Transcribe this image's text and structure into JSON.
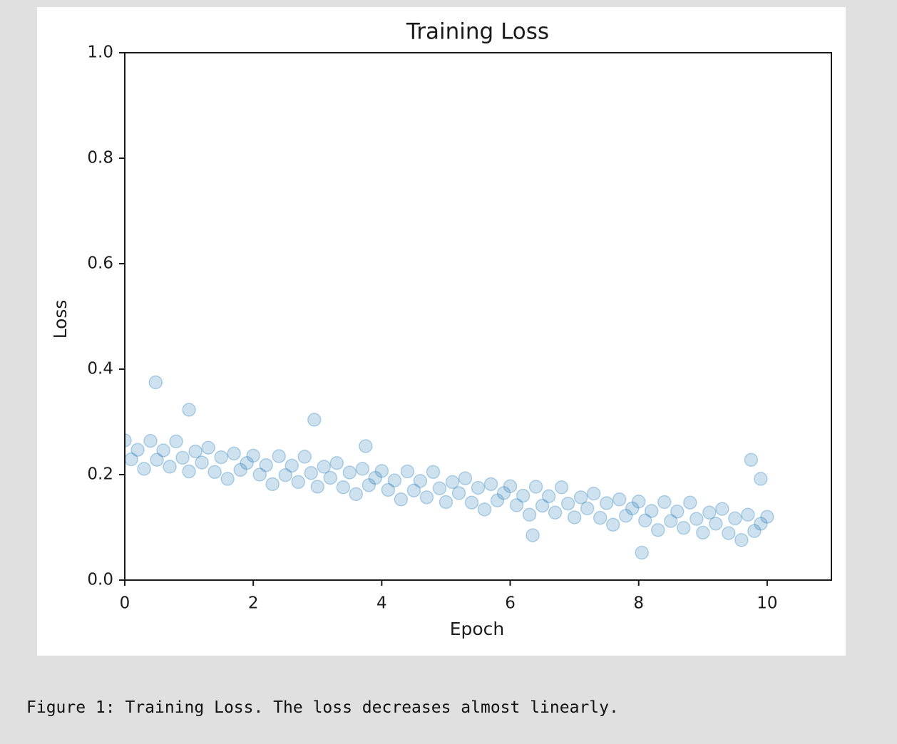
{
  "chart_data": {
    "type": "scatter",
    "title": "Training Loss",
    "xlabel": "Epoch",
    "ylabel": "Loss",
    "color": "#1f77b4",
    "xlim": [
      0,
      11
    ],
    "ylim": [
      0,
      1
    ],
    "xticks": [
      0,
      2,
      4,
      6,
      8,
      10
    ],
    "yticks": [
      {
        "value": 0,
        "label": "0.0"
      },
      0.2,
      0.4,
      0.6,
      0.8,
      {
        "value": 1,
        "label": "1.0"
      }
    ],
    "x": [
      0,
      0.1,
      0.2,
      0.3,
      0.4,
      0.5,
      0.6,
      0.7,
      0.8,
      0.9,
      1,
      1.1,
      1.2,
      1.3,
      1.4,
      1.5,
      1.6,
      1.7,
      1.8,
      1.9,
      2,
      2.1,
      2.2,
      2.3,
      2.4,
      2.5,
      2.6,
      2.7,
      2.8,
      2.9,
      3,
      3.1,
      3.2,
      3.3,
      3.4,
      3.5,
      3.6,
      3.7,
      3.8,
      3.9,
      4,
      4.1,
      4.2,
      4.3,
      4.4,
      4.5,
      4.6,
      4.7,
      4.8,
      4.9,
      5,
      5.1,
      5.2,
      5.3,
      5.4,
      5.5,
      5.6,
      5.7,
      5.8,
      5.9,
      6,
      6.1,
      6.2,
      6.3,
      6.4,
      6.5,
      6.6,
      6.7,
      6.8,
      6.9,
      7,
      7.1,
      7.2,
      7.3,
      7.4,
      7.5,
      7.6,
      7.7,
      7.8,
      7.9,
      8,
      8.1,
      8.2,
      8.3,
      8.4,
      8.5,
      8.6,
      8.7,
      8.8,
      8.9,
      9,
      9.1,
      9.2,
      9.3,
      9.4,
      9.5,
      9.6,
      9.7,
      9.8,
      9.9,
      10,
      0.48,
      1,
      2.95,
      9.75,
      8.05,
      6.35,
      3.75,
      9.9
    ],
    "values": [
      0.265,
      0.229,
      0.247,
      0.211,
      0.264,
      0.228,
      0.246,
      0.215,
      0.263,
      0.232,
      0.206,
      0.244,
      0.223,
      0.251,
      0.205,
      0.233,
      0.192,
      0.24,
      0.209,
      0.222,
      0.236,
      0.2,
      0.218,
      0.182,
      0.235,
      0.199,
      0.217,
      0.186,
      0.234,
      0.203,
      0.177,
      0.215,
      0.194,
      0.222,
      0.176,
      0.204,
      0.163,
      0.211,
      0.18,
      0.194,
      0.207,
      0.171,
      0.189,
      0.153,
      0.206,
      0.17,
      0.188,
      0.157,
      0.205,
      0.174,
      0.148,
      0.186,
      0.165,
      0.193,
      0.147,
      0.175,
      0.134,
      0.182,
      0.151,
      0.165,
      0.178,
      0.142,
      0.16,
      0.124,
      0.177,
      0.141,
      0.159,
      0.128,
      0.176,
      0.145,
      0.119,
      0.157,
      0.136,
      0.164,
      0.118,
      0.146,
      0.105,
      0.153,
      0.122,
      0.136,
      0.149,
      0.113,
      0.131,
      0.095,
      0.148,
      0.112,
      0.13,
      0.099,
      0.147,
      0.116,
      0.09,
      0.128,
      0.107,
      0.135,
      0.089,
      0.117,
      0.076,
      0.124,
      0.093,
      0.107,
      0.12,
      0.375,
      0.323,
      0.304,
      0.228,
      0.052,
      0.085,
      0.254,
      0.192
    ]
  },
  "caption": "Figure 1: Training Loss. The loss decreases almost linearly."
}
